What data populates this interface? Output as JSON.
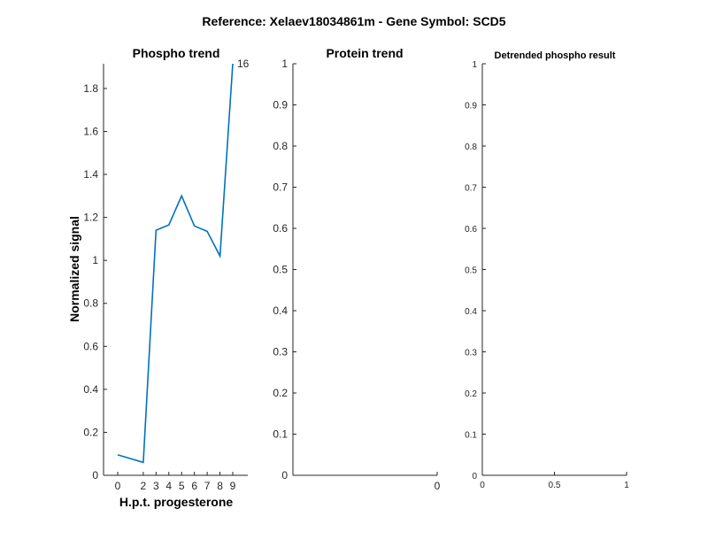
{
  "figure_title": "Reference:  Xelaev18034861m - Gene Symbol:  SCD5",
  "chart_data": [
    {
      "type": "line",
      "title": "Phospho trend",
      "xlabel": "H.p.t. progesterone",
      "ylabel": "Normalized signal",
      "x": [
        0,
        2,
        3,
        4,
        5,
        6,
        7,
        8,
        9
      ],
      "x_tick_labels": [
        "0",
        "2",
        "3",
        "4",
        "5",
        "6",
        "7",
        "8",
        "9"
      ],
      "series": [
        {
          "values": [
            0.095,
            0.06,
            1.14,
            1.165,
            1.3,
            1.16,
            1.135,
            1.02,
            1.915
          ]
        }
      ],
      "ylim": [
        0,
        1.915
      ],
      "y_ticks": [
        0,
        0.2,
        0.4,
        0.6,
        0.8,
        1,
        1.2,
        1.4,
        1.6,
        1.8
      ],
      "y_tick_labels": [
        "0",
        "0.2",
        "0.4",
        "0.6",
        "0.8",
        "1",
        "1.2",
        "1.4",
        "1.6",
        "1.8"
      ],
      "annotation": "16",
      "grid": false
    },
    {
      "type": "line",
      "title": "Protein trend",
      "xlabel": "",
      "ylabel": "",
      "x_tick_labels": [
        "0"
      ],
      "series": [],
      "ylim": [
        0,
        1
      ],
      "y_ticks": [
        0,
        0.1,
        0.2,
        0.3,
        0.4,
        0.5,
        0.6,
        0.7,
        0.8,
        0.9,
        1
      ],
      "y_tick_labels": [
        "0",
        "0.1",
        "0.2",
        "0.3",
        "0.4",
        "0.5",
        "0.6",
        "0.7",
        "0.8",
        "0.9",
        "1"
      ],
      "grid": false
    },
    {
      "type": "line",
      "title": "Detrended phospho result",
      "xlabel": "",
      "ylabel": "",
      "xlim": [
        0,
        1
      ],
      "x_ticks": [
        0,
        0.5,
        1
      ],
      "x_tick_labels": [
        "0",
        "0.5",
        "1"
      ],
      "series": [],
      "ylim": [
        0,
        1
      ],
      "y_ticks": [
        0,
        0.1,
        0.2,
        0.3,
        0.4,
        0.5,
        0.6,
        0.7,
        0.8,
        0.9,
        1
      ],
      "y_tick_labels": [
        "0",
        "0.1",
        "0.2",
        "0.3",
        "0.4",
        "0.5",
        "0.6",
        "0.7",
        "0.8",
        "0.9",
        "1"
      ],
      "grid": false
    }
  ],
  "colors": {
    "series": "#0072BD",
    "axis": "#262626"
  }
}
